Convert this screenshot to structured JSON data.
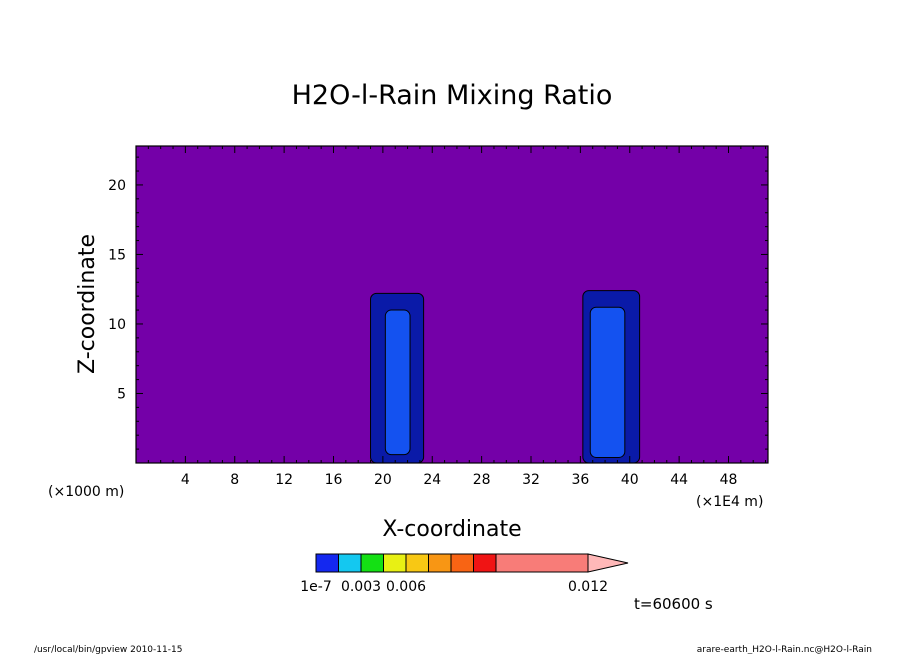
{
  "chart_data": {
    "type": "heatmap",
    "title": "H2O-l-Rain Mixing Ratio",
    "xlabel": "X-coordinate",
    "ylabel": "Z-coordinate",
    "x_unit_left": "(×1000 m)",
    "x_unit_right": "(×1E4 m)",
    "xlim": [
      0,
      51.2
    ],
    "ylim": [
      0,
      22.8
    ],
    "x_ticks": [
      4,
      8,
      12,
      16,
      20,
      24,
      28,
      32,
      36,
      40,
      44,
      48
    ],
    "y_ticks": [
      5,
      10,
      15,
      20
    ],
    "background_color": "#7400a8",
    "colorbar": {
      "colors": [
        "#1428f0",
        "#14c8f0",
        "#14e014",
        "#e8f014",
        "#f8c814",
        "#f89614",
        "#f86414",
        "#f01414",
        "#f87c78",
        "#ffb8b8"
      ],
      "labels": [
        "1e-7",
        "0.003",
        "0.006",
        "0.012"
      ],
      "label_values": [
        0,
        0.003,
        0.006,
        0.012
      ]
    },
    "time_label": "t=60600 s",
    "regions": [
      {
        "level": "outer",
        "color": "#0a1aa8",
        "cells": [
          {
            "x0": 19.0,
            "x1": 23.3,
            "z0": 0,
            "z1": 12.2
          },
          {
            "x0": 36.2,
            "x1": 40.8,
            "z0": 0,
            "z1": 12.4
          }
        ]
      },
      {
        "level": "inner",
        "color": "#1452f0",
        "cells": [
          {
            "x0": 20.2,
            "x1": 22.2,
            "z0": 0.6,
            "z1": 11.0
          },
          {
            "x0": 36.8,
            "x1": 39.6,
            "z0": 0.4,
            "z1": 11.2
          }
        ]
      }
    ]
  },
  "footer": {
    "left": "/usr/local/bin/gpview  2010-11-15",
    "right": "arare-earth_H2O-l-Rain.nc@H2O-l-Rain"
  }
}
